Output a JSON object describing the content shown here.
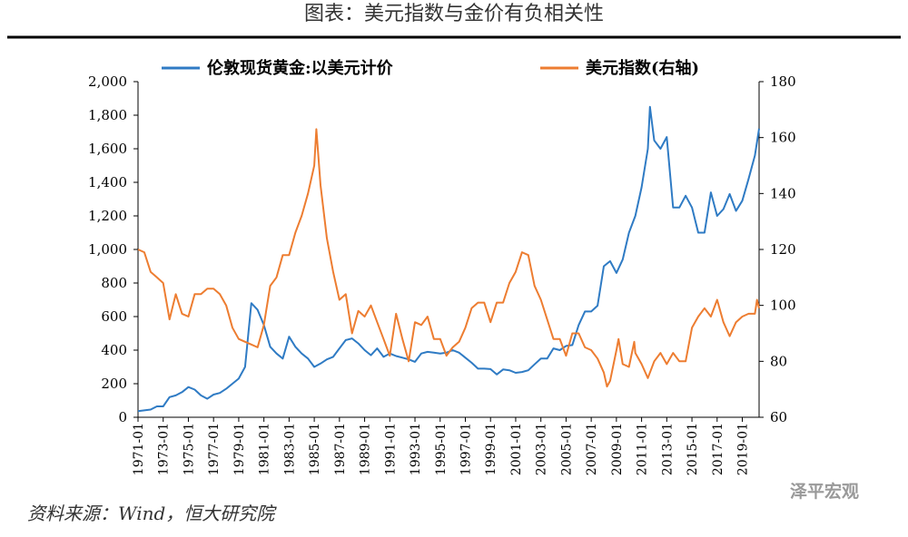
{
  "chart_data": {
    "type": "line",
    "title": "图表：美元指数与金价有负相关性",
    "source": "资料来源：Wind，恒大研究院",
    "watermark": "泽平宏观",
    "xlim": [
      "1971-01",
      "2020-05"
    ],
    "xticks": [
      "1971-01",
      "1973-01",
      "1975-01",
      "1977-01",
      "1979-01",
      "1981-01",
      "1983-01",
      "1985-01",
      "1987-01",
      "1989-01",
      "1991-01",
      "1993-01",
      "1995-01",
      "1997-01",
      "1999-01",
      "2001-01",
      "2003-01",
      "2005-01",
      "2007-01",
      "2009-01",
      "2011-01",
      "2013-01",
      "2015-01",
      "2017-01",
      "2019-01"
    ],
    "ylim": [
      0,
      2000
    ],
    "yticks": [
      0,
      200,
      400,
      600,
      800,
      {
        "value": 1000,
        "label": "1,000"
      },
      {
        "value": 1200,
        "label": "1,200"
      },
      {
        "value": 1400,
        "label": "1,400"
      },
      {
        "value": 1600,
        "label": "1,600"
      },
      {
        "value": 1800,
        "label": "1,800"
      },
      {
        "value": 2000,
        "label": "2,000"
      }
    ],
    "y2lim": [
      60,
      180
    ],
    "y2ticks": [
      60,
      80,
      100,
      120,
      140,
      160,
      180
    ],
    "legend": "top",
    "series": [
      {
        "name": "伦敦现货黄金:以美元计价",
        "color": "#2f7bc4",
        "x": [
          "1971-01",
          "1971-07",
          "1972-01",
          "1972-07",
          "1973-01",
          "1973-07",
          "1974-01",
          "1974-07",
          "1975-01",
          "1975-07",
          "1976-01",
          "1976-07",
          "1977-01",
          "1977-07",
          "1978-01",
          "1978-07",
          "1979-01",
          "1979-07",
          "1980-01",
          "1980-07",
          "1981-01",
          "1981-07",
          "1982-01",
          "1982-07",
          "1983-01",
          "1983-07",
          "1984-01",
          "1984-07",
          "1985-01",
          "1985-07",
          "1986-01",
          "1986-07",
          "1987-01",
          "1987-07",
          "1988-01",
          "1988-07",
          "1989-01",
          "1989-07",
          "1990-01",
          "1990-07",
          "1991-01",
          "1991-07",
          "1992-01",
          "1992-07",
          "1993-01",
          "1993-07",
          "1994-01",
          "1994-07",
          "1995-01",
          "1995-07",
          "1996-01",
          "1996-07",
          "1997-01",
          "1997-07",
          "1998-01",
          "1998-07",
          "1999-01",
          "1999-07",
          "2000-01",
          "2000-07",
          "2001-01",
          "2001-07",
          "2002-01",
          "2002-07",
          "2003-01",
          "2003-07",
          "2004-01",
          "2004-07",
          "2005-01",
          "2005-07",
          "2006-01",
          "2006-07",
          "2007-01",
          "2007-07",
          "2008-01",
          "2008-07",
          "2009-01",
          "2009-07",
          "2010-01",
          "2010-07",
          "2011-01",
          "2011-07",
          "2011-09",
          "2012-01",
          "2012-07",
          "2013-01",
          "2013-07",
          "2014-01",
          "2014-07",
          "2015-01",
          "2015-07",
          "2016-01",
          "2016-07",
          "2017-01",
          "2017-07",
          "2018-01",
          "2018-07",
          "2019-01",
          "2019-07",
          "2020-01",
          "2020-05"
        ],
        "values": [
          37,
          41,
          46,
          65,
          65,
          120,
          130,
          150,
          180,
          165,
          130,
          110,
          135,
          145,
          170,
          200,
          230,
          300,
          680,
          640,
          550,
          420,
          380,
          350,
          480,
          420,
          380,
          350,
          300,
          320,
          345,
          360,
          410,
          460,
          470,
          440,
          400,
          370,
          410,
          360,
          380,
          365,
          355,
          345,
          330,
          380,
          390,
          385,
          380,
          385,
          400,
          385,
          355,
          325,
          290,
          290,
          287,
          255,
          285,
          280,
          265,
          270,
          280,
          315,
          350,
          350,
          410,
          400,
          425,
          430,
          550,
          630,
          630,
          665,
          900,
          930,
          860,
          940,
          1100,
          1200,
          1370,
          1600,
          1850,
          1650,
          1600,
          1670,
          1250,
          1250,
          1320,
          1250,
          1100,
          1100,
          1340,
          1200,
          1240,
          1330,
          1230,
          1290,
          1420,
          1560,
          1720
        ]
      },
      {
        "name": "美元指数(右轴)",
        "color": "#ed7d31",
        "axis": "y2",
        "x": [
          "1971-01",
          "1971-07",
          "1972-01",
          "1972-07",
          "1973-01",
          "1973-07",
          "1974-01",
          "1974-07",
          "1975-01",
          "1975-07",
          "1976-01",
          "1976-07",
          "1977-01",
          "1977-07",
          "1978-01",
          "1978-07",
          "1979-01",
          "1979-07",
          "1980-01",
          "1980-07",
          "1981-01",
          "1981-07",
          "1982-01",
          "1982-07",
          "1983-01",
          "1983-07",
          "1984-01",
          "1984-07",
          "1985-01",
          "1985-03",
          "1985-07",
          "1986-01",
          "1986-07",
          "1987-01",
          "1987-07",
          "1988-01",
          "1988-07",
          "1989-01",
          "1989-07",
          "1990-01",
          "1990-07",
          "1991-01",
          "1991-07",
          "1992-01",
          "1992-07",
          "1993-01",
          "1993-07",
          "1994-01",
          "1994-07",
          "1995-01",
          "1995-07",
          "1996-01",
          "1996-07",
          "1997-01",
          "1997-07",
          "1998-01",
          "1998-07",
          "1999-01",
          "1999-07",
          "2000-01",
          "2000-07",
          "2001-01",
          "2001-07",
          "2002-01",
          "2002-07",
          "2003-01",
          "2003-07",
          "2004-01",
          "2004-07",
          "2005-01",
          "2005-07",
          "2006-01",
          "2006-07",
          "2007-01",
          "2007-07",
          "2008-01",
          "2008-04",
          "2008-07",
          "2009-01",
          "2009-03",
          "2009-07",
          "2010-01",
          "2010-06",
          "2010-07",
          "2011-01",
          "2011-07",
          "2012-01",
          "2012-07",
          "2013-01",
          "2013-07",
          "2014-01",
          "2014-07",
          "2015-01",
          "2015-07",
          "2016-01",
          "2016-07",
          "2017-01",
          "2017-07",
          "2018-01",
          "2018-07",
          "2019-01",
          "2019-07",
          "2020-01",
          "2020-03",
          "2020-05"
        ],
        "values": [
          120,
          119,
          112,
          110,
          108,
          95,
          104,
          97,
          96,
          104,
          104,
          106,
          106,
          104,
          100,
          92,
          88,
          87,
          86,
          85,
          93,
          107,
          110,
          118,
          118,
          126,
          132,
          140,
          150,
          163,
          143,
          124,
          112,
          102,
          104,
          90,
          98,
          96,
          100,
          94,
          88,
          82,
          97,
          88,
          80,
          94,
          93,
          96,
          88,
          88,
          82,
          85,
          87,
          92,
          99,
          101,
          101,
          94,
          101,
          101,
          108,
          112,
          119,
          118,
          107,
          102,
          95,
          88,
          88,
          82,
          90,
          90,
          85,
          84,
          81,
          76,
          71,
          73,
          84,
          88,
          79,
          78,
          87,
          83,
          79,
          74,
          80,
          83,
          79,
          83,
          80,
          80,
          92,
          96,
          99,
          96,
          102,
          94,
          89,
          94,
          96,
          97,
          97,
          102,
          99
        ]
      }
    ]
  }
}
